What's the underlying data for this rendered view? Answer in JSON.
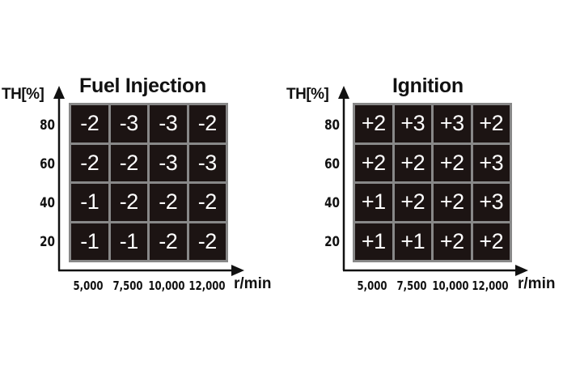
{
  "fuel": {
    "title": "Fuel Injection",
    "ylabel": "TH[%]",
    "yticks": [
      "80",
      "60",
      "40",
      "20"
    ],
    "xticks": [
      "5,000",
      "7,500",
      "10,000",
      "12,000"
    ],
    "xunit": "r/min",
    "rows": [
      [
        "-2",
        "-3",
        "-3",
        "-2"
      ],
      [
        "-2",
        "-2",
        "-3",
        "-3"
      ],
      [
        "-1",
        "-2",
        "-2",
        "-2"
      ],
      [
        "-1",
        "-1",
        "-2",
        "-2"
      ]
    ]
  },
  "ignition": {
    "title": "Ignition",
    "ylabel": "TH[%]",
    "yticks": [
      "80",
      "60",
      "40",
      "20"
    ],
    "xticks": [
      "5,000",
      "7,500",
      "10,000",
      "12,000"
    ],
    "xunit": "r/min",
    "rows": [
      [
        "+2",
        "+3",
        "+3",
        "+2"
      ],
      [
        "+2",
        "+2",
        "+2",
        "+3"
      ],
      [
        "+1",
        "+2",
        "+2",
        "+3"
      ],
      [
        "+1",
        "+1",
        "+2",
        "+2"
      ]
    ]
  },
  "colors": {
    "cell": "#1c1413",
    "gridline": "#888888",
    "text": "#111111"
  }
}
